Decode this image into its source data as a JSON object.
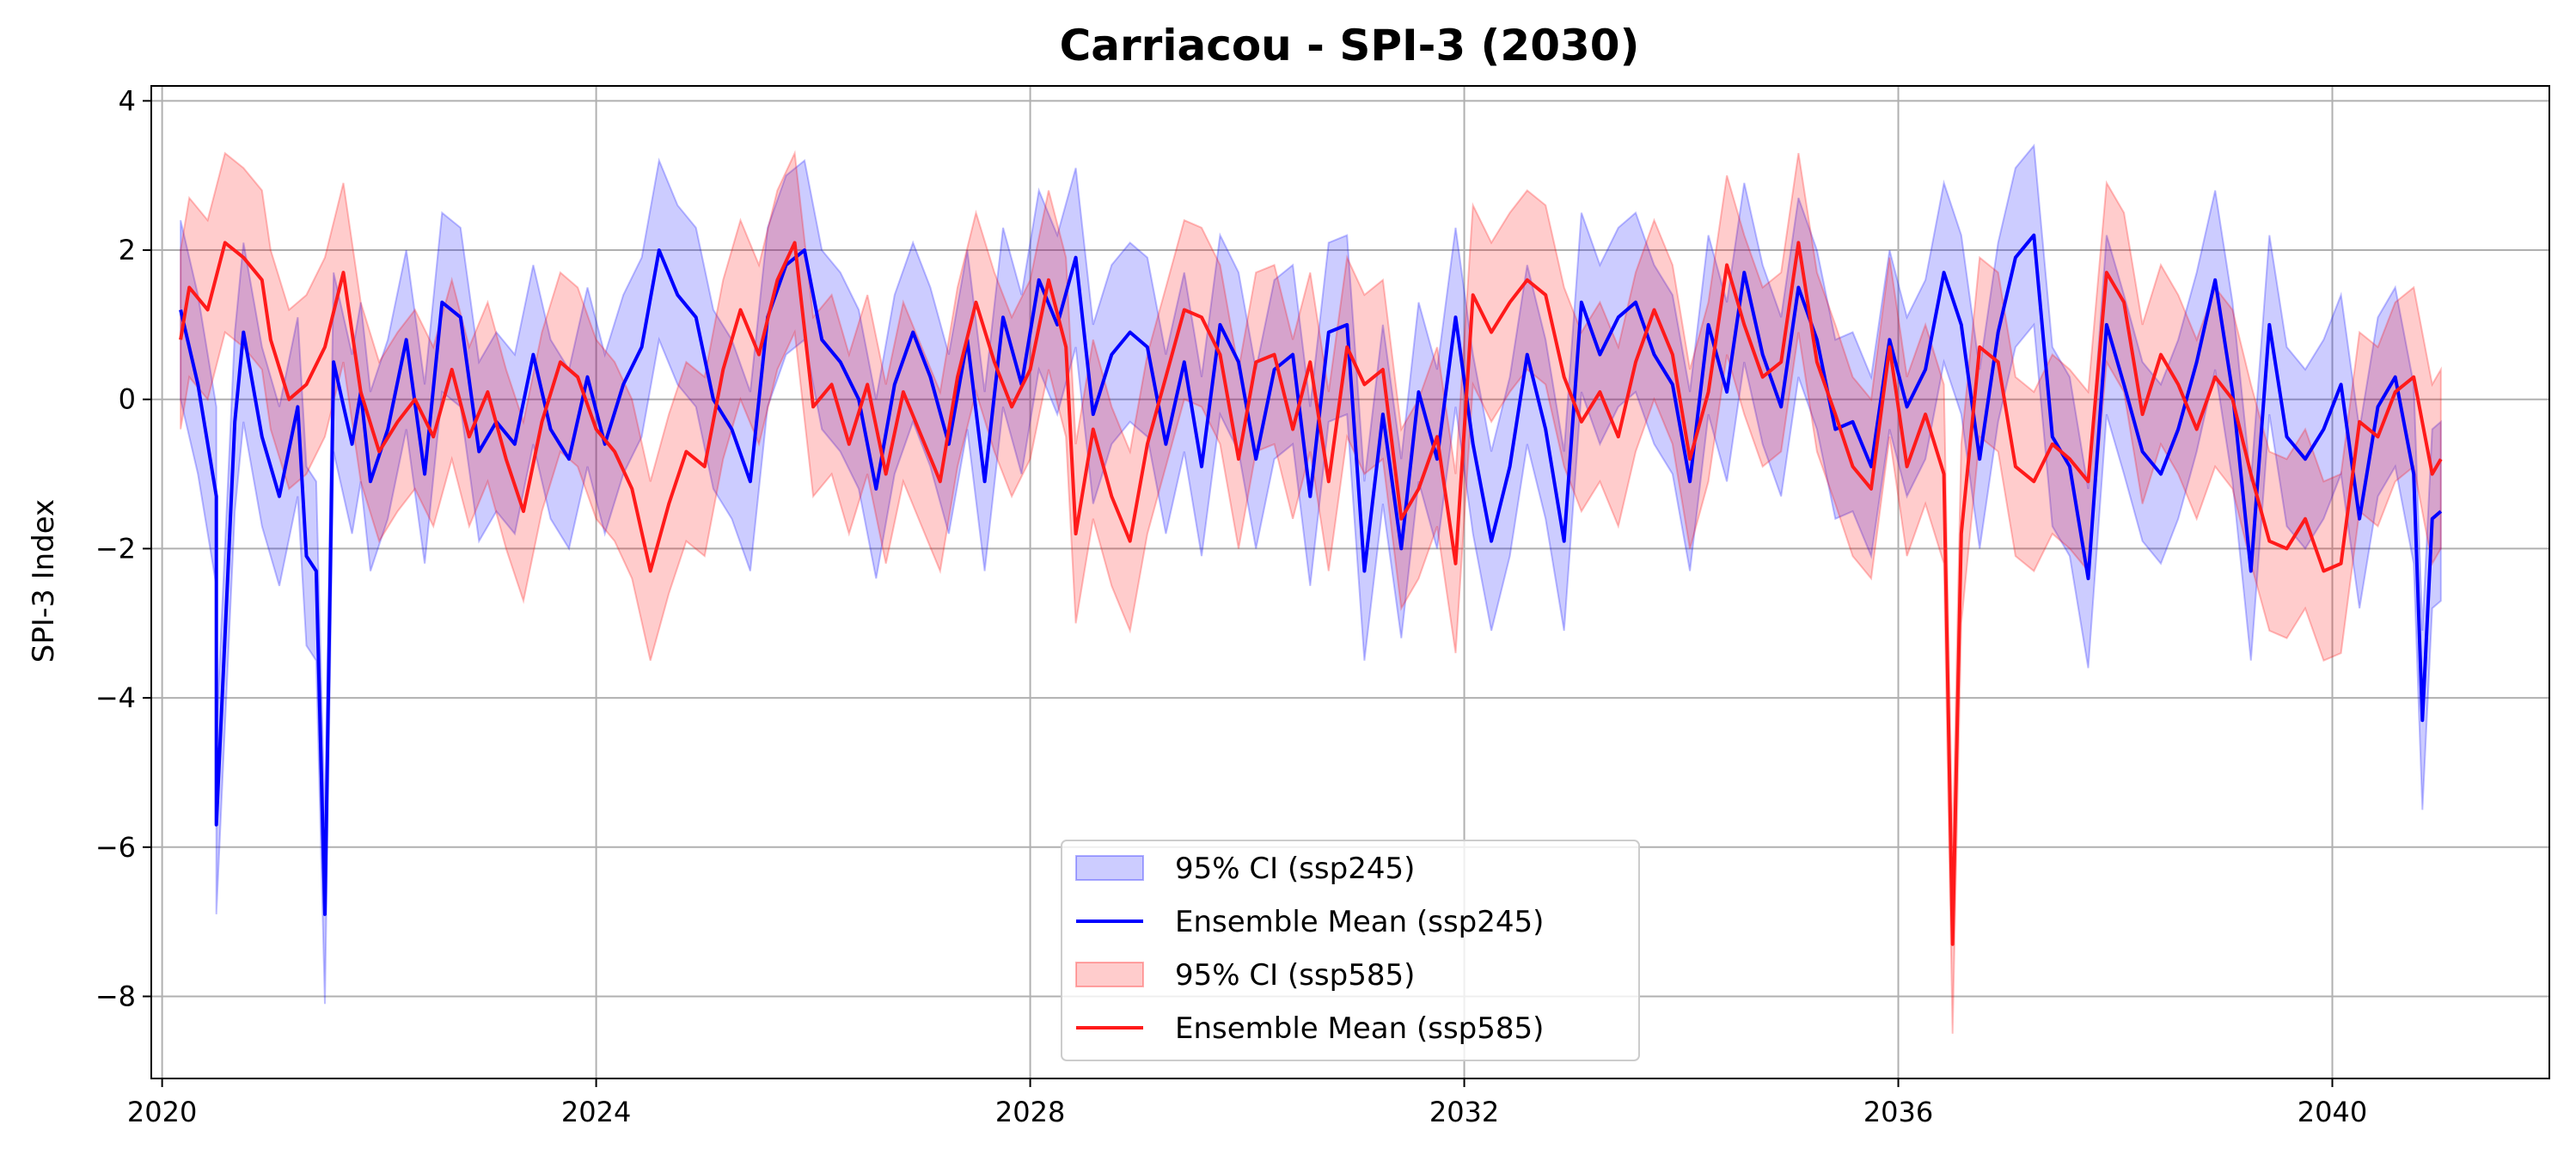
{
  "chart_data": {
    "type": "line",
    "title": "Carriacou - SPI-3 (2030)",
    "xlabel": "",
    "ylabel": "SPI-3 Index",
    "xlim": [
      2019.9,
      2042.0
    ],
    "ylim": [
      -9.1,
      4.2
    ],
    "x_ticks": [
      2020,
      2024,
      2028,
      2032,
      2036,
      2040
    ],
    "y_ticks": [
      4,
      2,
      0,
      -2,
      -4,
      -6,
      -8
    ],
    "y_tick_labels": [
      "4",
      "2",
      "0",
      "−2",
      "−4",
      "−6",
      "−8"
    ],
    "grid": true,
    "legend_position": "bottom-center",
    "legend": [
      {
        "label": "95% CI (ssp245)",
        "kind": "band",
        "color": "#0000ff"
      },
      {
        "label": "Ensemble Mean (ssp245)",
        "kind": "line",
        "color": "#0000ff"
      },
      {
        "label": "95% CI (ssp585)",
        "kind": "band",
        "color": "#ff0000"
      },
      {
        "label": "Ensemble Mean (ssp585)",
        "kind": "line",
        "color": "#ff1a1a"
      }
    ],
    "series": [
      {
        "name": "Ensemble Mean (ssp245)",
        "color": "#0000ff",
        "ci_color": "#0000ff",
        "ci_halfwidth": 1.2,
        "points": [
          [
            2020.17,
            1.2
          ],
          [
            2020.33,
            0.2
          ],
          [
            2020.5,
            -1.3
          ],
          [
            2020.5,
            -5.7
          ],
          [
            2020.67,
            -0.3
          ],
          [
            2020.75,
            0.9
          ],
          [
            2020.92,
            -0.5
          ],
          [
            2021.08,
            -1.3
          ],
          [
            2021.25,
            -0.1
          ],
          [
            2021.33,
            -2.1
          ],
          [
            2021.42,
            -2.3
          ],
          [
            2021.5,
            -6.9
          ],
          [
            2021.58,
            0.5
          ],
          [
            2021.75,
            -0.6
          ],
          [
            2021.83,
            0.1
          ],
          [
            2021.92,
            -1.1
          ],
          [
            2022.08,
            -0.4
          ],
          [
            2022.25,
            0.8
          ],
          [
            2022.42,
            -1.0
          ],
          [
            2022.58,
            1.3
          ],
          [
            2022.75,
            1.1
          ],
          [
            2022.92,
            -0.7
          ],
          [
            2023.08,
            -0.3
          ],
          [
            2023.25,
            -0.6
          ],
          [
            2023.42,
            0.6
          ],
          [
            2023.58,
            -0.4
          ],
          [
            2023.75,
            -0.8
          ],
          [
            2023.92,
            0.3
          ],
          [
            2024.08,
            -0.6
          ],
          [
            2024.25,
            0.2
          ],
          [
            2024.42,
            0.7
          ],
          [
            2024.58,
            2.0
          ],
          [
            2024.75,
            1.4
          ],
          [
            2024.92,
            1.1
          ],
          [
            2025.08,
            0.0
          ],
          [
            2025.25,
            -0.4
          ],
          [
            2025.42,
            -1.1
          ],
          [
            2025.58,
            1.1
          ],
          [
            2025.75,
            1.8
          ],
          [
            2025.92,
            2.0
          ],
          [
            2026.08,
            0.8
          ],
          [
            2026.25,
            0.5
          ],
          [
            2026.42,
            0.0
          ],
          [
            2026.58,
            -1.2
          ],
          [
            2026.75,
            0.2
          ],
          [
            2026.92,
            0.9
          ],
          [
            2027.08,
            0.3
          ],
          [
            2027.25,
            -0.6
          ],
          [
            2027.42,
            0.8
          ],
          [
            2027.58,
            -1.1
          ],
          [
            2027.75,
            1.1
          ],
          [
            2027.92,
            0.2
          ],
          [
            2028.08,
            1.6
          ],
          [
            2028.25,
            1.0
          ],
          [
            2028.42,
            1.9
          ],
          [
            2028.58,
            -0.2
          ],
          [
            2028.75,
            0.6
          ],
          [
            2028.92,
            0.9
          ],
          [
            2029.08,
            0.7
          ],
          [
            2029.25,
            -0.6
          ],
          [
            2029.42,
            0.5
          ],
          [
            2029.58,
            -0.9
          ],
          [
            2029.75,
            1.0
          ],
          [
            2029.92,
            0.5
          ],
          [
            2030.08,
            -0.8
          ],
          [
            2030.25,
            0.4
          ],
          [
            2030.42,
            0.6
          ],
          [
            2030.58,
            -1.3
          ],
          [
            2030.75,
            0.9
          ],
          [
            2030.92,
            1.0
          ],
          [
            2031.08,
            -2.3
          ],
          [
            2031.25,
            -0.2
          ],
          [
            2031.42,
            -2.0
          ],
          [
            2031.58,
            0.1
          ],
          [
            2031.75,
            -0.8
          ],
          [
            2031.92,
            1.1
          ],
          [
            2032.08,
            -0.6
          ],
          [
            2032.25,
            -1.9
          ],
          [
            2032.42,
            -0.9
          ],
          [
            2032.58,
            0.6
          ],
          [
            2032.75,
            -0.4
          ],
          [
            2032.92,
            -1.9
          ],
          [
            2033.08,
            1.3
          ],
          [
            2033.25,
            0.6
          ],
          [
            2033.42,
            1.1
          ],
          [
            2033.58,
            1.3
          ],
          [
            2033.75,
            0.6
          ],
          [
            2033.92,
            0.2
          ],
          [
            2034.08,
            -1.1
          ],
          [
            2034.25,
            1.0
          ],
          [
            2034.42,
            0.1
          ],
          [
            2034.58,
            1.7
          ],
          [
            2034.75,
            0.6
          ],
          [
            2034.92,
            -0.1
          ],
          [
            2035.08,
            1.5
          ],
          [
            2035.25,
            0.8
          ],
          [
            2035.42,
            -0.4
          ],
          [
            2035.58,
            -0.3
          ],
          [
            2035.75,
            -0.9
          ],
          [
            2035.92,
            0.8
          ],
          [
            2036.08,
            -0.1
          ],
          [
            2036.25,
            0.4
          ],
          [
            2036.42,
            1.7
          ],
          [
            2036.58,
            1.0
          ],
          [
            2036.75,
            -0.8
          ],
          [
            2036.92,
            0.9
          ],
          [
            2037.08,
            1.9
          ],
          [
            2037.25,
            2.2
          ],
          [
            2037.42,
            -0.5
          ],
          [
            2037.58,
            -0.9
          ],
          [
            2037.75,
            -2.4
          ],
          [
            2037.92,
            1.0
          ],
          [
            2038.08,
            0.2
          ],
          [
            2038.25,
            -0.7
          ],
          [
            2038.42,
            -1.0
          ],
          [
            2038.58,
            -0.4
          ],
          [
            2038.75,
            0.5
          ],
          [
            2038.92,
            1.6
          ],
          [
            2039.08,
            0.1
          ],
          [
            2039.25,
            -2.3
          ],
          [
            2039.42,
            1.0
          ],
          [
            2039.58,
            -0.5
          ],
          [
            2039.75,
            -0.8
          ],
          [
            2039.92,
            -0.4
          ],
          [
            2040.08,
            0.2
          ],
          [
            2040.25,
            -1.6
          ],
          [
            2040.42,
            -0.1
          ],
          [
            2040.58,
            0.3
          ],
          [
            2040.75,
            -1.0
          ],
          [
            2040.83,
            -4.3
          ],
          [
            2040.92,
            -1.6
          ],
          [
            2041.0,
            -1.5
          ]
        ]
      },
      {
        "name": "Ensemble Mean (ssp585)",
        "color": "#ff1a1a",
        "ci_color": "#ff0000",
        "ci_halfwidth": 1.2,
        "points": [
          [
            2020.17,
            0.8
          ],
          [
            2020.25,
            1.5
          ],
          [
            2020.42,
            1.2
          ],
          [
            2020.58,
            2.1
          ],
          [
            2020.75,
            1.9
          ],
          [
            2020.92,
            1.6
          ],
          [
            2021.0,
            0.8
          ],
          [
            2021.17,
            0.0
          ],
          [
            2021.33,
            0.2
          ],
          [
            2021.5,
            0.7
          ],
          [
            2021.67,
            1.7
          ],
          [
            2021.83,
            0.1
          ],
          [
            2022.0,
            -0.7
          ],
          [
            2022.17,
            -0.3
          ],
          [
            2022.33,
            0.0
          ],
          [
            2022.5,
            -0.5
          ],
          [
            2022.67,
            0.4
          ],
          [
            2022.83,
            -0.5
          ],
          [
            2023.0,
            0.1
          ],
          [
            2023.17,
            -0.8
          ],
          [
            2023.33,
            -1.5
          ],
          [
            2023.5,
            -0.3
          ],
          [
            2023.67,
            0.5
          ],
          [
            2023.83,
            0.3
          ],
          [
            2024.0,
            -0.4
          ],
          [
            2024.17,
            -0.7
          ],
          [
            2024.33,
            -1.2
          ],
          [
            2024.5,
            -2.3
          ],
          [
            2024.67,
            -1.4
          ],
          [
            2024.83,
            -0.7
          ],
          [
            2025.0,
            -0.9
          ],
          [
            2025.17,
            0.4
          ],
          [
            2025.33,
            1.2
          ],
          [
            2025.5,
            0.6
          ],
          [
            2025.67,
            1.6
          ],
          [
            2025.83,
            2.1
          ],
          [
            2026.0,
            -0.1
          ],
          [
            2026.17,
            0.2
          ],
          [
            2026.33,
            -0.6
          ],
          [
            2026.5,
            0.2
          ],
          [
            2026.67,
            -1.0
          ],
          [
            2026.83,
            0.1
          ],
          [
            2027.0,
            -0.5
          ],
          [
            2027.17,
            -1.1
          ],
          [
            2027.33,
            0.3
          ],
          [
            2027.5,
            1.3
          ],
          [
            2027.67,
            0.5
          ],
          [
            2027.83,
            -0.1
          ],
          [
            2028.0,
            0.4
          ],
          [
            2028.17,
            1.6
          ],
          [
            2028.33,
            0.7
          ],
          [
            2028.42,
            -1.8
          ],
          [
            2028.58,
            -0.4
          ],
          [
            2028.75,
            -1.3
          ],
          [
            2028.92,
            -1.9
          ],
          [
            2029.08,
            -0.6
          ],
          [
            2029.25,
            0.3
          ],
          [
            2029.42,
            1.2
          ],
          [
            2029.58,
            1.1
          ],
          [
            2029.75,
            0.6
          ],
          [
            2029.92,
            -0.8
          ],
          [
            2030.08,
            0.5
          ],
          [
            2030.25,
            0.6
          ],
          [
            2030.42,
            -0.4
          ],
          [
            2030.58,
            0.5
          ],
          [
            2030.75,
            -1.1
          ],
          [
            2030.92,
            0.7
          ],
          [
            2031.08,
            0.2
          ],
          [
            2031.25,
            0.4
          ],
          [
            2031.42,
            -1.6
          ],
          [
            2031.58,
            -1.2
          ],
          [
            2031.75,
            -0.5
          ],
          [
            2031.92,
            -2.2
          ],
          [
            2032.08,
            1.4
          ],
          [
            2032.25,
            0.9
          ],
          [
            2032.42,
            1.3
          ],
          [
            2032.58,
            1.6
          ],
          [
            2032.75,
            1.4
          ],
          [
            2032.92,
            0.3
          ],
          [
            2033.08,
            -0.3
          ],
          [
            2033.25,
            0.1
          ],
          [
            2033.42,
            -0.5
          ],
          [
            2033.58,
            0.5
          ],
          [
            2033.75,
            1.2
          ],
          [
            2033.92,
            0.6
          ],
          [
            2034.08,
            -0.8
          ],
          [
            2034.25,
            0.1
          ],
          [
            2034.42,
            1.8
          ],
          [
            2034.58,
            1.0
          ],
          [
            2034.75,
            0.3
          ],
          [
            2034.92,
            0.5
          ],
          [
            2035.08,
            2.1
          ],
          [
            2035.25,
            0.5
          ],
          [
            2035.42,
            -0.2
          ],
          [
            2035.58,
            -0.9
          ],
          [
            2035.75,
            -1.2
          ],
          [
            2035.92,
            0.7
          ],
          [
            2036.08,
            -0.9
          ],
          [
            2036.25,
            -0.2
          ],
          [
            2036.42,
            -1.0
          ],
          [
            2036.5,
            -7.3
          ],
          [
            2036.58,
            -1.8
          ],
          [
            2036.75,
            0.7
          ],
          [
            2036.92,
            0.5
          ],
          [
            2037.08,
            -0.9
          ],
          [
            2037.25,
            -1.1
          ],
          [
            2037.42,
            -0.6
          ],
          [
            2037.58,
            -0.8
          ],
          [
            2037.75,
            -1.1
          ],
          [
            2037.92,
            1.7
          ],
          [
            2038.08,
            1.3
          ],
          [
            2038.25,
            -0.2
          ],
          [
            2038.42,
            0.6
          ],
          [
            2038.58,
            0.2
          ],
          [
            2038.75,
            -0.4
          ],
          [
            2038.92,
            0.3
          ],
          [
            2039.08,
            0.0
          ],
          [
            2039.25,
            -1.0
          ],
          [
            2039.42,
            -1.9
          ],
          [
            2039.58,
            -2.0
          ],
          [
            2039.75,
            -1.6
          ],
          [
            2039.92,
            -2.3
          ],
          [
            2040.08,
            -2.2
          ],
          [
            2040.25,
            -0.3
          ],
          [
            2040.42,
            -0.5
          ],
          [
            2040.58,
            0.1
          ],
          [
            2040.75,
            0.3
          ],
          [
            2040.92,
            -1.0
          ],
          [
            2041.0,
            -0.8
          ]
        ]
      }
    ]
  }
}
